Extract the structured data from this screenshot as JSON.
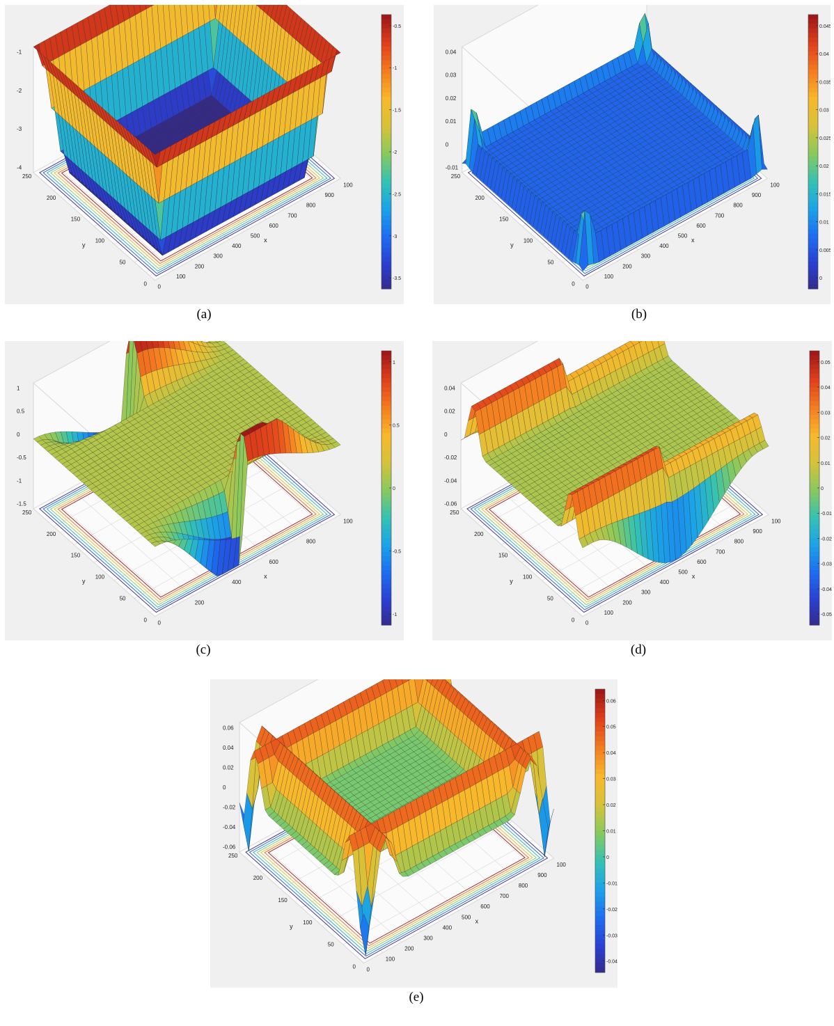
{
  "colors": {
    "colormap": [
      "#352a87",
      "#2b3fd1",
      "#1e6df0",
      "#1ba2e8",
      "#35c2b2",
      "#88c95e",
      "#d6c23a",
      "#f8b82c",
      "#f47d20",
      "#e0411c",
      "#a01818"
    ],
    "panel_bg": "#f0f0f0",
    "grid": "#d8d8d8",
    "edge": "#222222"
  },
  "chart_data": [
    {
      "id": "a",
      "caption": "(a)",
      "type": "surface3d",
      "shape": "bowl",
      "xlabel": "x",
      "ylabel": "y",
      "x_ticks": [
        "0",
        "100",
        "200",
        "300",
        "400",
        "500",
        "600",
        "700",
        "800",
        "900",
        "100"
      ],
      "y_ticks": [
        "0",
        "50",
        "100",
        "150",
        "200",
        "250"
      ],
      "z_ticks": [
        "-1",
        "-2",
        "-3",
        "-4"
      ],
      "zlim": [
        -4,
        -0.5
      ],
      "colorbar_ticks": [
        "-0.5",
        "-1",
        "-1.5",
        "-2",
        "-2.5",
        "-3",
        "-3.5"
      ],
      "contour_on_floor": true
    },
    {
      "id": "b",
      "caption": "(b)",
      "type": "surface3d",
      "shape": "walls_with_corner_peaks",
      "xlabel": "x",
      "ylabel": "y",
      "x_ticks": [
        "0",
        "100",
        "200",
        "300",
        "400",
        "500",
        "600",
        "700",
        "800",
        "900",
        "100"
      ],
      "y_ticks": [
        "0",
        "50",
        "100",
        "150",
        "200",
        "250"
      ],
      "z_ticks": [
        "0.04",
        "0.03",
        "0.02",
        "0.01",
        "0",
        "-0.01"
      ],
      "zlim": [
        -0.01,
        0.045
      ],
      "colorbar_ticks": [
        "0.045",
        "0.04",
        "0.035",
        "0.03",
        "0.025",
        "0.02",
        "0.015",
        "0.01",
        "0.005",
        "0"
      ],
      "contour_on_floor": true
    },
    {
      "id": "c",
      "caption": "(c)",
      "type": "surface3d",
      "shape": "antisymmetric_ridge_valley",
      "xlabel": "x",
      "ylabel": "y",
      "x_ticks": [
        "0",
        "200",
        "400",
        "600",
        "800",
        "100"
      ],
      "y_ticks": [
        "0",
        "50",
        "100",
        "150",
        "200",
        "250"
      ],
      "z_ticks": [
        "1",
        "0.5",
        "0",
        "-0.5",
        "-1",
        "-1.5"
      ],
      "zlim": [
        -1.5,
        1.2
      ],
      "colorbar_ticks": [
        "1",
        "0.5",
        "0",
        "-0.5",
        "-1"
      ],
      "contour_on_floor": true
    },
    {
      "id": "d",
      "caption": "(d)",
      "type": "surface3d",
      "shape": "two_parallel_walls",
      "xlabel": "x",
      "ylabel": "y",
      "x_ticks": [
        "0",
        "100",
        "200",
        "300",
        "400",
        "500",
        "600",
        "700",
        "800",
        "900",
        "100"
      ],
      "y_ticks": [
        "0",
        "50",
        "100",
        "150",
        "200",
        "250"
      ],
      "z_ticks": [
        "0.04",
        "0.02",
        "0",
        "-0.02",
        "-0.04",
        "-0.06"
      ],
      "zlim": [
        -0.06,
        0.05
      ],
      "colorbar_ticks": [
        "0.05",
        "0.04",
        "0.03",
        "0.02",
        "0.01",
        "0",
        "-0.01",
        "-0.02",
        "-0.03",
        "-0.04",
        "-0.05"
      ],
      "contour_on_floor": true
    },
    {
      "id": "e",
      "caption": "(e)",
      "type": "surface3d",
      "shape": "walls_with_corner_dips",
      "xlabel": "x",
      "ylabel": "y",
      "x_ticks": [
        "0",
        "100",
        "200",
        "300",
        "400",
        "500",
        "600",
        "700",
        "800",
        "900",
        "100"
      ],
      "y_ticks": [
        "0",
        "50",
        "100",
        "150",
        "200",
        "250"
      ],
      "z_ticks": [
        "0.06",
        "0.04",
        "0.02",
        "0",
        "-0.02",
        "-0.04",
        "-0.06"
      ],
      "zlim": [
        -0.06,
        0.065
      ],
      "colorbar_ticks": [
        "0.06",
        "0.05",
        "0.04",
        "0.03",
        "0.02",
        "0.01",
        "0",
        "-0.01",
        "-0.02",
        "-0.03",
        "-0.04"
      ],
      "contour_on_floor": true
    }
  ]
}
